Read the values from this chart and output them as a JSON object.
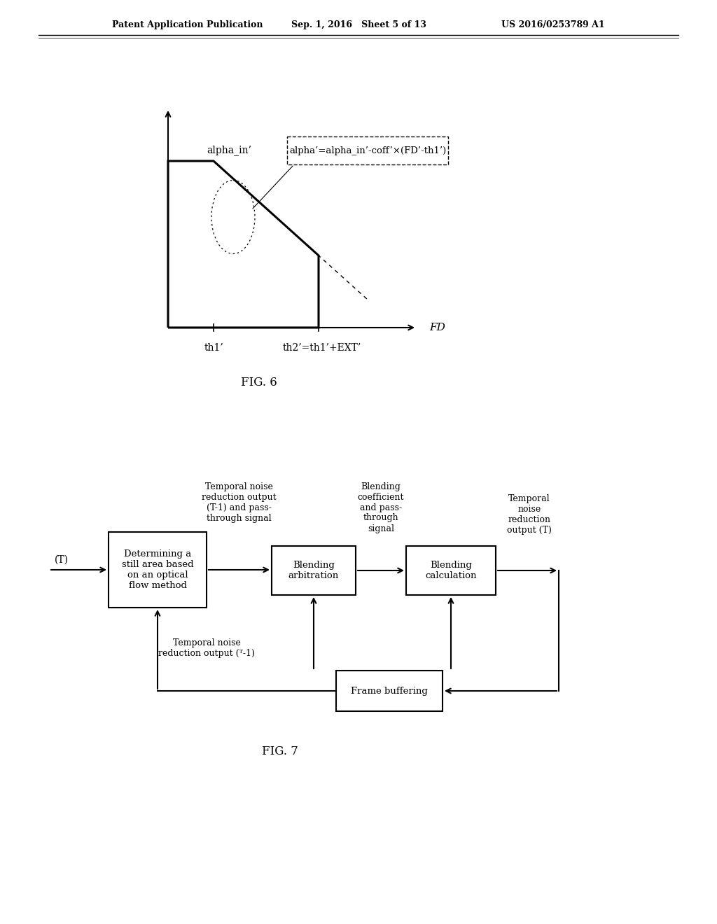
{
  "header_left": "Patent Application Publication",
  "header_mid": "Sep. 1, 2016   Sheet 5 of 13",
  "header_right": "US 2016/0253789 A1",
  "fig6_caption": "FIG. 6",
  "fig7_caption": "FIG. 7",
  "graph_xlabel": "FD",
  "graph_alpha_label": "alpha_in’",
  "graph_th1_label": "th1’",
  "graph_th2_label": "th2’=th1’+EXT’",
  "graph_formula": "alpha’=alpha_in’-coff’×(FD’-th1’)",
  "box1_text": "Determining a\nstill area based\non an optical\nflow method",
  "box2_text": "Blending\narbitration",
  "box3_text": "Blending\ncalculation",
  "box4_text": "Frame buffering",
  "arrow_in_label": "(T)",
  "label_top_arrow": "Temporal noise\nreduction output\n(T-1) and pass-\nthrough signal",
  "label_blending_coeff": "Blending\ncoefficient\nand pass-\nthrough\nsignal",
  "label_tnr_output_T": "Temporal\nnoise\nreduction\noutput (T)",
  "label_tnr_output_T1": "Temporal noise\nreduction output (ᵀ-1)",
  "background_color": "#ffffff",
  "line_color": "#000000",
  "text_color": "#000000"
}
